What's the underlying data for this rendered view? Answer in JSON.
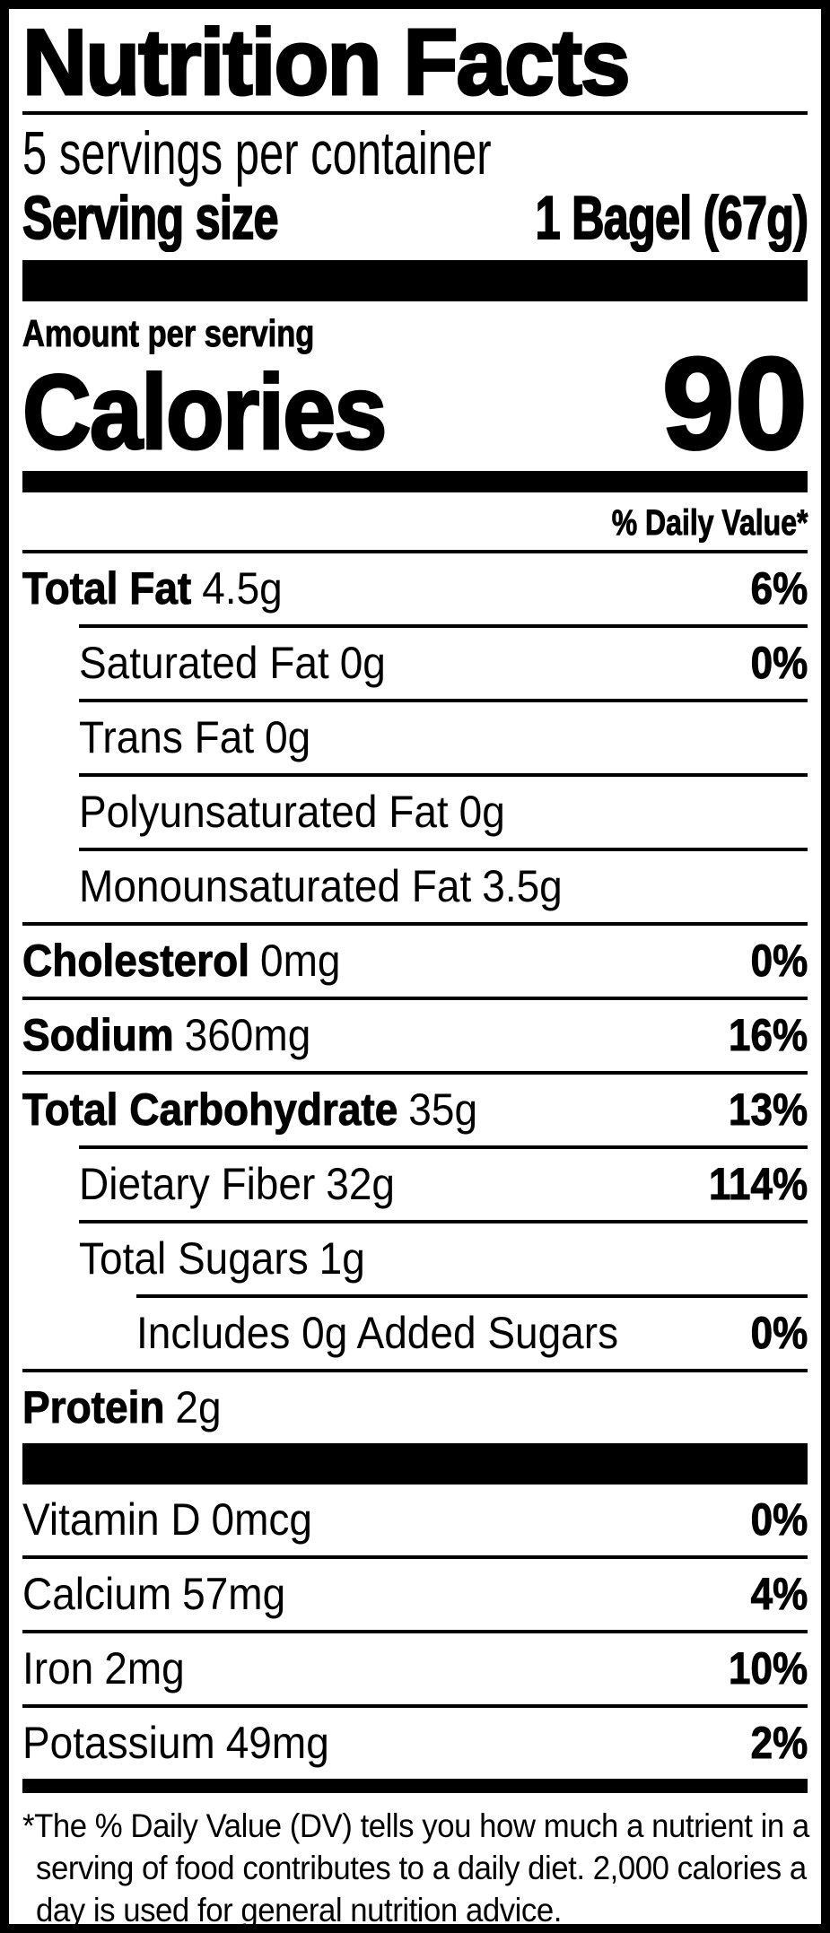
{
  "colors": {
    "ink": "#000000",
    "paper": "#ffffff"
  },
  "label": {
    "title": "Nutrition Facts",
    "servings_per_container": "5 servings per container",
    "serving_size_label": "Serving size",
    "serving_size_value": "1 Bagel (67g)",
    "amount_per_serving": "Amount per serving",
    "calories_label": "Calories",
    "calories_value": "90",
    "daily_value_header": "% Daily Value*",
    "rows": [
      {
        "name": "Total Fat",
        "amount": "4.5g",
        "dv": "6%"
      },
      {
        "name": "Saturated Fat",
        "amount": "0g",
        "dv": "0%"
      },
      {
        "name": "Trans Fat",
        "amount": "0g",
        "dv": ""
      },
      {
        "name": "Polyunsaturated Fat",
        "amount": "0g",
        "dv": ""
      },
      {
        "name": "Monounsaturated Fat",
        "amount": "3.5g",
        "dv": ""
      },
      {
        "name": "Cholesterol",
        "amount": "0mg",
        "dv": "0%"
      },
      {
        "name": "Sodium",
        "amount": "360mg",
        "dv": "16%"
      },
      {
        "name": "Total Carbohydrate",
        "amount": "35g",
        "dv": "13%"
      },
      {
        "name": "Dietary Fiber",
        "amount": "32g",
        "dv": "114%"
      },
      {
        "name": "Total Sugars",
        "amount": "1g",
        "dv": ""
      },
      {
        "name": "Includes 0g Added Sugars",
        "amount": "",
        "dv": "0%"
      },
      {
        "name": "Protein",
        "amount": "2g",
        "dv": ""
      }
    ],
    "vitamins": [
      {
        "name": "Vitamin D",
        "amount": "0mcg",
        "dv": "0%"
      },
      {
        "name": "Calcium",
        "amount": "57mg",
        "dv": "4%"
      },
      {
        "name": "Iron",
        "amount": "2mg",
        "dv": "10%"
      },
      {
        "name": "Potassium",
        "amount": "49mg",
        "dv": "2%"
      }
    ],
    "footnote": "*The % Daily Value (DV) tells you how much a nutrient in a serving of food contributes to a daily diet. 2,000 calories a day is used for general nutrition advice."
  }
}
